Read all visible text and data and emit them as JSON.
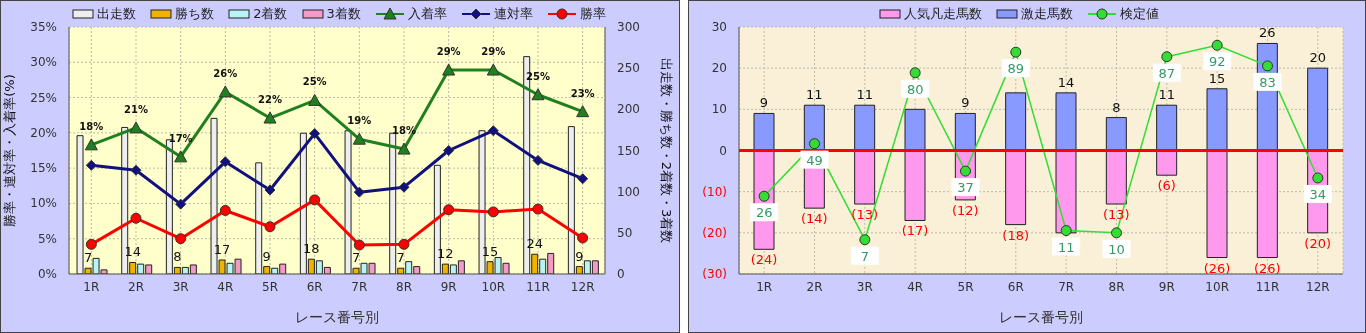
{
  "chart_data": [
    {
      "type": "bar",
      "xlabel": "レース番号別",
      "ylabel": "勝率・連対率・入着率(%)",
      "y2label": "出走数・勝ち数・2着数・3着数",
      "categories": [
        "1R",
        "2R",
        "3R",
        "4R",
        "5R",
        "6R",
        "7R",
        "8R",
        "9R",
        "10R",
        "11R",
        "12R"
      ],
      "ylim": [
        0,
        35
      ],
      "yticks": [
        {
          "value": 0,
          "label": "0%"
        },
        {
          "value": 5,
          "label": "5%"
        },
        {
          "value": 10,
          "label": "10%"
        },
        {
          "value": 15,
          "label": "15%"
        },
        {
          "value": 20,
          "label": "20%"
        },
        {
          "value": 25,
          "label": "25%"
        },
        {
          "value": 30,
          "label": "30%"
        },
        {
          "value": 35,
          "label": "35%"
        }
      ],
      "y2lim": [
        0,
        300
      ],
      "y2ticks": [
        0,
        50,
        100,
        150,
        200,
        250,
        300
      ],
      "grid": true,
      "legend": "top",
      "series": [
        {
          "name": "出走数",
          "axis": "y2",
          "color": "#eeeeee",
          "values": [
            168,
            178,
            163,
            189,
            135,
            171,
            174,
            171,
            132,
            174,
            264,
            179
          ]
        },
        {
          "name": "勝ち数",
          "axis": "y2",
          "color": "#f0b400",
          "values": [
            7,
            14,
            8,
            17,
            9,
            18,
            7,
            7,
            12,
            15,
            24,
            9
          ],
          "value_labels": [
            "7",
            "14",
            "8",
            "17",
            "9",
            "18",
            "7",
            "7",
            "12",
            "15",
            "24",
            "9"
          ]
        },
        {
          "name": "2着数",
          "axis": "y2",
          "color": "#b8f4f4",
          "values": [
            19,
            12,
            8,
            13,
            7,
            16,
            13,
            15,
            11,
            20,
            18,
            16
          ]
        },
        {
          "name": "3着数",
          "axis": "y2",
          "color": "#f49ac8",
          "values": [
            5,
            11,
            11,
            18,
            12,
            8,
            13,
            9,
            16,
            13,
            25,
            16
          ]
        },
        {
          "name": "入着率",
          "type": "line",
          "axis": "y",
          "color": "#208020",
          "marker": "triangle",
          "values": [
            18.3,
            20.7,
            16.6,
            25.8,
            22.1,
            24.6,
            19.1,
            17.7,
            28.9,
            28.9,
            25.4,
            23.0
          ],
          "value_labels": [
            "18%",
            "21%",
            "17%",
            "26%",
            "22%",
            "25%",
            "19%",
            "18%",
            "29%",
            "29%",
            "25%",
            "23%"
          ]
        },
        {
          "name": "連対率",
          "type": "line",
          "axis": "y",
          "color": "#101080",
          "marker": "diamond",
          "values": [
            15.4,
            14.7,
            9.9,
            15.9,
            11.9,
            19.9,
            11.6,
            12.3,
            17.5,
            20.3,
            16.1,
            13.5
          ]
        },
        {
          "name": "勝率",
          "type": "line",
          "axis": "y",
          "color": "#ff0000",
          "marker": "circle",
          "values": [
            4.2,
            7.9,
            5.0,
            9.0,
            6.7,
            10.5,
            4.1,
            4.2,
            9.1,
            8.8,
            9.2,
            5.1
          ]
        }
      ]
    },
    {
      "type": "bar",
      "xlabel": "レース番号別",
      "categories": [
        "1R",
        "2R",
        "3R",
        "4R",
        "5R",
        "6R",
        "7R",
        "8R",
        "9R",
        "10R",
        "11R",
        "12R"
      ],
      "stacked": true,
      "ylim": [
        -30,
        30
      ],
      "yticks": [
        {
          "value": -30,
          "label": "(30)"
        },
        {
          "value": -20,
          "label": "(20)"
        },
        {
          "value": -10,
          "label": "(10)"
        },
        0,
        10,
        20,
        30
      ],
      "y2lim": [
        -8,
        100
      ],
      "grid": true,
      "legend": "top",
      "ref_lines": [
        {
          "axis": "y",
          "value": 0,
          "color": "#ff0000"
        }
      ],
      "series": [
        {
          "name": "人気凡走馬数",
          "axis": "y",
          "color": "#ff99ee",
          "values": [
            -24,
            -14,
            -13,
            -17,
            -12,
            -18,
            -20,
            -13,
            -6,
            -26,
            -26,
            -20
          ],
          "value_labels": [
            "(24)",
            "(14)",
            "(13)",
            "(17)",
            "(12)",
            "(18)",
            null,
            "(13)",
            "(6)",
            "(26)",
            "(26)",
            "(20)"
          ]
        },
        {
          "name": "激走馬数",
          "axis": "y",
          "color": "#8899ff",
          "values": [
            9,
            11,
            11,
            10,
            9,
            14,
            14,
            8,
            11,
            15,
            26,
            20
          ],
          "value_labels": [
            "9",
            "11",
            "11",
            null,
            "9",
            null,
            "14",
            "8",
            "11",
            "15",
            "26",
            "20"
          ]
        },
        {
          "name": "検定値",
          "type": "line",
          "axis": "y2",
          "color": "#33dd33",
          "marker": "circle",
          "values": [
            26,
            49,
            7,
            80,
            37,
            89,
            11,
            10,
            87,
            92,
            83,
            34
          ],
          "value_labels": [
            "26",
            "49",
            "7",
            "80",
            "37",
            "89",
            "11",
            "10",
            "87",
            "92",
            "83",
            "34"
          ]
        }
      ]
    }
  ]
}
